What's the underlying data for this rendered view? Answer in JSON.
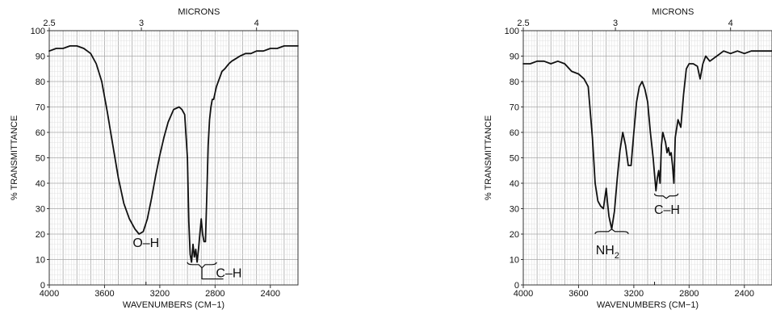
{
  "chart_data": [
    {
      "type": "line",
      "title": "",
      "xlabel": "WAVENUMBERS (CM−1)",
      "ylabel": "% TRANSMITTANCE",
      "top_axis_label": "MICRONS",
      "x_direction": "decreasing",
      "xlim": [
        4000,
        2200
      ],
      "ylim": [
        0,
        100
      ],
      "grid": true,
      "x_ticks": [
        "4000",
        "3600",
        "3200",
        "2800",
        "2400"
      ],
      "x_tick_values": [
        4000,
        3600,
        3200,
        2800,
        2400
      ],
      "y_ticks": [
        "0",
        "10",
        "20",
        "30",
        "40",
        "50",
        "60",
        "70",
        "80",
        "90",
        "100"
      ],
      "micron_ticks": [
        "2.5",
        "3",
        "4"
      ],
      "micron_values": [
        2.5,
        3,
        4
      ],
      "annotations": [
        {
          "text": "O–H",
          "x": 3300,
          "y": 15
        },
        {
          "text": "C–H",
          "x": 2700,
          "y": 3
        }
      ],
      "series": [
        {
          "x": [
            4000,
            3950,
            3900,
            3850,
            3800,
            3750,
            3700,
            3660,
            3620,
            3580,
            3540,
            3500,
            3460,
            3420,
            3380,
            3350,
            3320,
            3290,
            3260,
            3230,
            3200,
            3170,
            3140,
            3100,
            3060,
            3040,
            3020,
            3000,
            2990,
            2980,
            2970,
            2960,
            2950,
            2940,
            2930,
            2920,
            2910,
            2900,
            2890,
            2880,
            2870,
            2860,
            2850,
            2840,
            2830,
            2820,
            2810,
            2790,
            2770,
            2750,
            2730,
            2700,
            2680,
            2650,
            2620,
            2580,
            2540,
            2500,
            2450,
            2400,
            2350,
            2300,
            2250,
            2200
          ],
          "values": [
            92,
            93,
            93,
            94,
            94,
            93,
            91,
            87,
            80,
            68,
            55,
            42,
            32,
            26,
            22,
            20,
            21,
            26,
            34,
            43,
            51,
            58,
            64,
            69,
            70,
            69,
            67,
            50,
            25,
            12,
            9,
            16,
            11,
            14,
            9,
            14,
            20,
            26,
            20,
            17,
            17,
            35,
            55,
            65,
            70,
            73,
            73,
            78,
            81,
            84,
            85,
            87,
            88,
            89,
            90,
            91,
            91,
            92,
            92,
            93,
            93,
            94,
            94,
            94
          ]
        }
      ]
    },
    {
      "type": "line",
      "title": "",
      "xlabel": "WAVENUMBERS (CM−1)",
      "ylabel": "% TRANSMITTANCE",
      "top_axis_label": "MICRONS",
      "x_direction": "decreasing",
      "xlim": [
        4000,
        2200
      ],
      "ylim": [
        0,
        100
      ],
      "grid": true,
      "x_ticks": [
        "4000",
        "3600",
        "3200",
        "2800",
        "2400"
      ],
      "x_tick_values": [
        4000,
        3600,
        3200,
        2800,
        2400
      ],
      "y_ticks": [
        "0",
        "10",
        "20",
        "30",
        "40",
        "50",
        "60",
        "70",
        "80",
        "90",
        "100"
      ],
      "micron_ticks": [
        "2.5",
        "3",
        "4"
      ],
      "micron_values": [
        2.5,
        3,
        4
      ],
      "annotations": [
        {
          "text": "NH",
          "subscript": "2",
          "x": 3390,
          "y": 12
        },
        {
          "text": "C–H",
          "x": 2960,
          "y": 28
        }
      ],
      "series": [
        {
          "x": [
            4000,
            3950,
            3900,
            3850,
            3800,
            3750,
            3700,
            3650,
            3600,
            3560,
            3530,
            3500,
            3480,
            3460,
            3440,
            3420,
            3400,
            3390,
            3380,
            3360,
            3340,
            3320,
            3300,
            3280,
            3260,
            3240,
            3220,
            3200,
            3180,
            3160,
            3140,
            3120,
            3100,
            3080,
            3060,
            3040,
            3030,
            3020,
            3010,
            3000,
            2990,
            2980,
            2970,
            2960,
            2950,
            2940,
            2930,
            2920,
            2910,
            2900,
            2880,
            2860,
            2840,
            2820,
            2800,
            2770,
            2740,
            2720,
            2700,
            2680,
            2650,
            2600,
            2550,
            2500,
            2450,
            2400,
            2350,
            2300,
            2250,
            2200
          ],
          "values": [
            87,
            87,
            88,
            88,
            87,
            88,
            87,
            84,
            83,
            81,
            78,
            58,
            40,
            33,
            31,
            30,
            38,
            32,
            27,
            22,
            29,
            42,
            53,
            60,
            55,
            47,
            47,
            60,
            72,
            78,
            80,
            77,
            72,
            60,
            50,
            37,
            42,
            45,
            40,
            55,
            60,
            58,
            56,
            52,
            54,
            51,
            52,
            47,
            40,
            58,
            65,
            62,
            75,
            85,
            87,
            87,
            86,
            81,
            87,
            90,
            88,
            90,
            92,
            91,
            92,
            91,
            92,
            92,
            92,
            92
          ]
        }
      ]
    }
  ]
}
